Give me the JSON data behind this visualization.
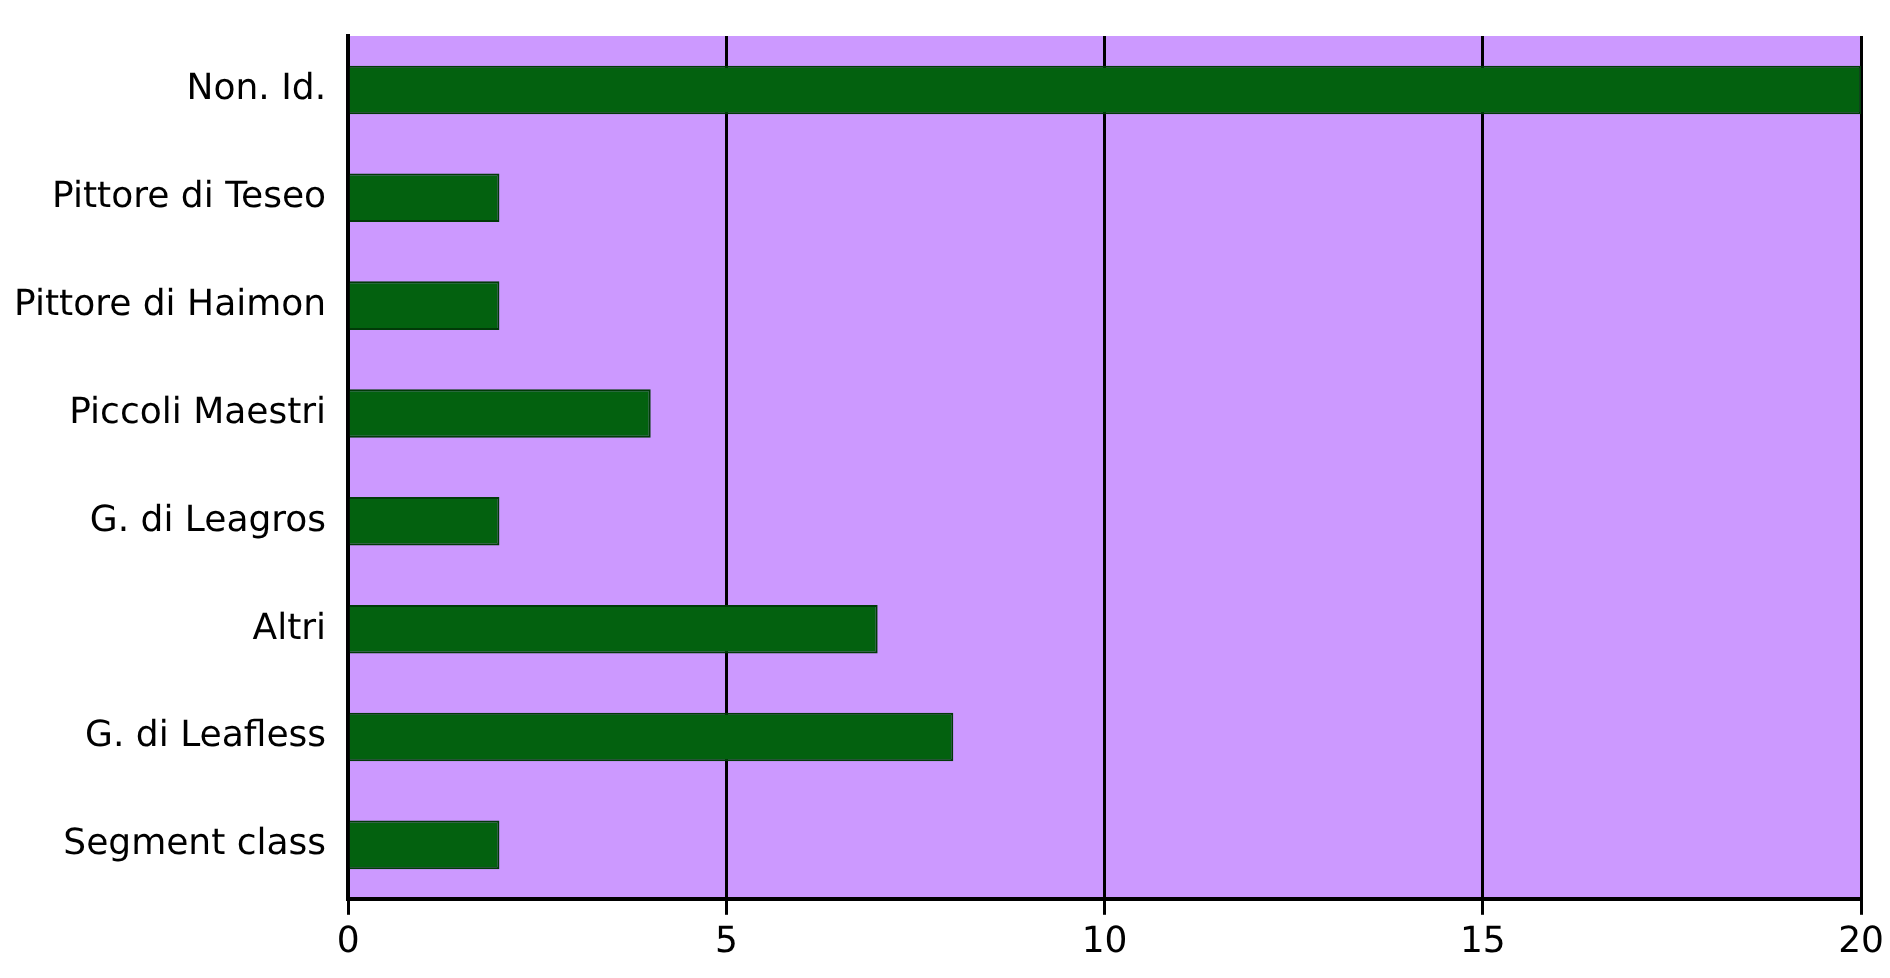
{
  "chart_data": {
    "type": "bar",
    "orientation": "horizontal",
    "categories": [
      "Non. Id.",
      "Pittore di Teseo",
      "Pittore di Haimon",
      "Piccoli Maestri",
      "G. di Leagros",
      "Altri",
      "G. di Leafless",
      "Segment class"
    ],
    "values": [
      20,
      2,
      2,
      4,
      2,
      7,
      8,
      2
    ],
    "color": "#03610f",
    "xlim": [
      0,
      20
    ],
    "xticks": [
      0,
      5,
      10,
      15,
      20
    ],
    "grid": "x",
    "legend": false
  }
}
